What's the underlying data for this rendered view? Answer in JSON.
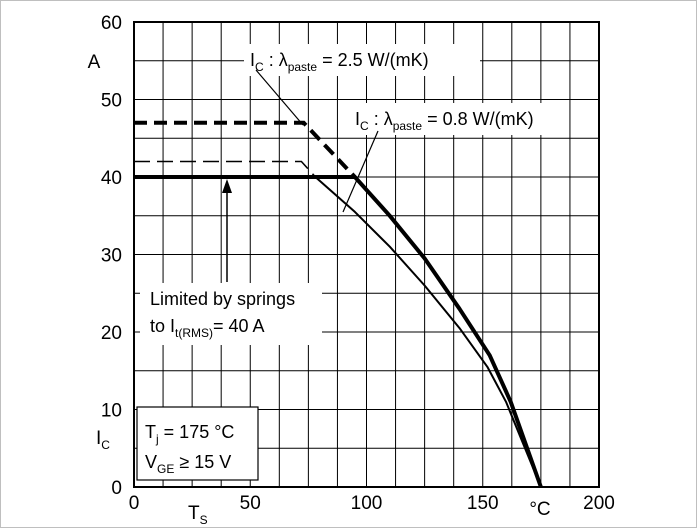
{
  "chart_data": {
    "type": "line",
    "xlim": [
      0,
      200
    ],
    "ylim": [
      0,
      60
    ],
    "x_ticks": [
      "0",
      "50",
      "100",
      "150",
      "200"
    ],
    "y_ticks": [
      "0",
      "10",
      "20",
      "30",
      "40",
      "50",
      "60"
    ],
    "x_ticks_numeric": [
      0,
      50,
      100,
      150,
      200
    ],
    "y_ticks_numeric": [
      0,
      10,
      20,
      30,
      40,
      50,
      60
    ],
    "x_label": "T",
    "x_label_sub": "S",
    "x_unit": "°C",
    "y_label": "I",
    "y_label_sub": "C",
    "y_unit": "A",
    "grid": true,
    "grid_minor_x_step": 12.5,
    "grid_minor_y_step": 5,
    "series": [
      {
        "name": "I_C : λ_paste = 2.5 W/(mK) (dashed)",
        "style": "dashed-thick",
        "x": [
          0,
          73,
          95
        ],
        "y": [
          47,
          47,
          40
        ]
      },
      {
        "name": "I_C : λ_paste = 0.8 W/(mK) (dashed)",
        "style": "dashed-thin",
        "x": [
          0,
          72,
          78
        ],
        "y": [
          42,
          42,
          40
        ]
      },
      {
        "name": "I_C : λ_paste = 2.5 W/(mK)",
        "style": "solid-thick",
        "x": [
          0,
          95,
          110,
          125,
          140,
          153,
          162,
          175
        ],
        "y": [
          40,
          40,
          35,
          29.5,
          23,
          17,
          11,
          0
        ]
      },
      {
        "name": "I_C : λ_paste = 0.8 W/(mK)",
        "style": "solid-thin",
        "x": [
          0,
          78,
          95,
          110,
          125,
          140,
          152,
          160,
          175
        ],
        "y": [
          40,
          40,
          35.5,
          31,
          26,
          20.5,
          15.5,
          11,
          0
        ]
      }
    ],
    "annotations": {
      "label_25": {
        "pre": "I",
        "pre_sub": "C",
        "mid": " : λ",
        "mid_sub": "paste",
        "post": " = 2.5 W/(mK)"
      },
      "label_08": {
        "pre": "I",
        "pre_sub": "C",
        "mid": " : λ",
        "mid_sub": "paste",
        "post": " = 0.8 W/(mK)"
      },
      "springs_line1": "Limited by springs",
      "springs_line2_pre": "to I",
      "springs_line2_sub": "t(RMS)",
      "springs_line2_post": "= 40 A",
      "cond_tj_pre": "T",
      "cond_tj_sub": "j",
      "cond_tj_post": " = 175 °C",
      "cond_vge_pre": "V",
      "cond_vge_sub": "GE",
      "cond_vge_post": " ≥ 15 V"
    }
  }
}
